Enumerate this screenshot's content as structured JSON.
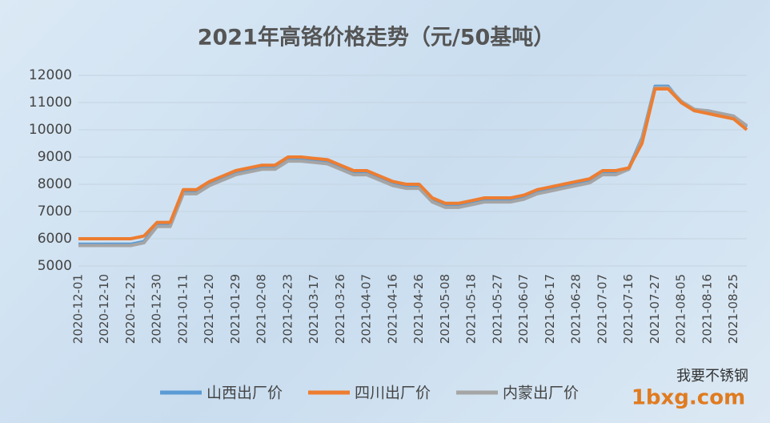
{
  "chart_data": {
    "type": "line",
    "title": "2021年高铬价格走势（元/50基吨）",
    "categories": [
      "2020-12-01",
      null,
      "2020-12-10",
      null,
      "2020-12-21",
      null,
      "2020-12-30",
      null,
      "2021-01-11",
      null,
      "2021-01-20",
      null,
      "2021-01-29",
      null,
      "2021-02-08",
      null,
      "2021-02-23",
      null,
      "2021-03-17",
      null,
      "2021-03-26",
      null,
      "2021-04-07",
      null,
      "2021-04-16",
      null,
      "2021-04-26",
      null,
      "2021-05-08",
      null,
      "2021-05-18",
      null,
      "2021-05-27",
      null,
      "2021-06-07",
      null,
      "2021-06-17",
      null,
      "2021-06-28",
      null,
      "2021-07-07",
      null,
      "2021-07-16",
      null,
      "2021-07-27",
      null,
      "2021-08-05",
      null,
      "2021-08-16",
      null,
      "2021-08-25",
      null
    ],
    "series": [
      {
        "name": "山西出厂价",
        "color": "#5b9bd5",
        "values": [
          5800,
          5800,
          5800,
          5800,
          5800,
          5900,
          6500,
          6500,
          7700,
          7700,
          8000,
          8200,
          8400,
          8500,
          8600,
          8600,
          8900,
          8900,
          8850,
          8800,
          8600,
          8400,
          8400,
          8200,
          8000,
          7900,
          7900,
          7400,
          7200,
          7200,
          7300,
          7400,
          7400,
          7400,
          7500,
          7700,
          7800,
          7900,
          8000,
          8100,
          8400,
          8400,
          8600,
          9700,
          11600,
          11600,
          11000,
          10700,
          10700,
          10600,
          10500,
          10100
        ]
      },
      {
        "name": "四川出厂价",
        "color": "#ed7d31",
        "values": [
          6000,
          6000,
          6000,
          6000,
          6000,
          6100,
          6600,
          6600,
          7800,
          7800,
          8100,
          8300,
          8500,
          8600,
          8700,
          8700,
          9000,
          9000,
          8950,
          8900,
          8700,
          8500,
          8500,
          8300,
          8100,
          8000,
          8000,
          7500,
          7300,
          7300,
          7400,
          7500,
          7500,
          7500,
          7600,
          7800,
          7900,
          8000,
          8100,
          8200,
          8500,
          8500,
          8600,
          9500,
          11500,
          11500,
          11000,
          10700,
          10600,
          10500,
          10400,
          10000
        ]
      },
      {
        "name": "内蒙出厂价",
        "color": "#a5a5a5",
        "values": [
          5750,
          5750,
          5750,
          5750,
          5750,
          5850,
          6450,
          6450,
          7650,
          7650,
          7950,
          8150,
          8350,
          8450,
          8550,
          8550,
          8850,
          8850,
          8800,
          8750,
          8550,
          8350,
          8350,
          8150,
          7950,
          7850,
          7850,
          7350,
          7150,
          7150,
          7250,
          7350,
          7350,
          7350,
          7450,
          7650,
          7750,
          7850,
          7950,
          8050,
          8350,
          8350,
          8550,
          9650,
          11550,
          11550,
          11050,
          10750,
          10700,
          10600,
          10500,
          10150
        ]
      }
    ],
    "ylim": [
      5000,
      12000
    ],
    "yticks": [
      5000,
      6000,
      7000,
      8000,
      9000,
      10000,
      11000,
      12000
    ],
    "grid": true,
    "legend": "bottom",
    "annotations": [
      "我要不锈钢",
      "1bxg.com"
    ]
  }
}
